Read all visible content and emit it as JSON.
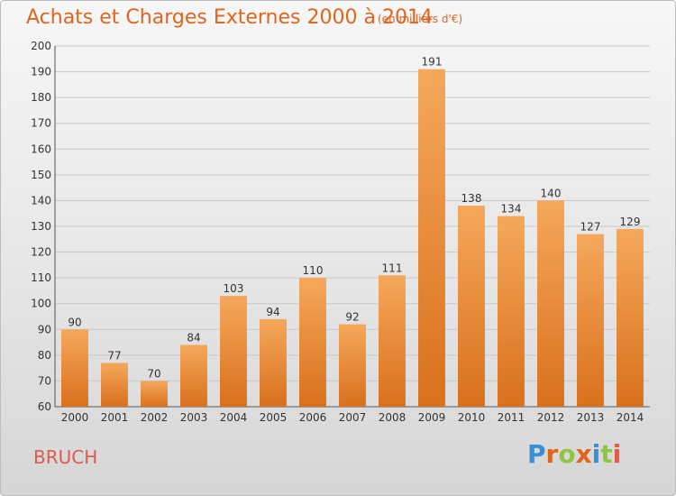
{
  "header": {
    "title": "Achats et Charges Externes 2000 à 2014",
    "subtitle": "(en milliers d'€)"
  },
  "footer": {
    "commune": "BRUCH",
    "logo_text": "Proxiti"
  },
  "colors": {
    "title": "#e0641f",
    "bar_top": "#f5a85a",
    "bar_bottom": "#d9701c",
    "commune": "#e05a4d",
    "logo_letters": [
      "#3a8fd6",
      "#e0641f",
      "#8dc63f",
      "#e0641f",
      "#3a8fd6",
      "#8dc63f",
      "#e05a4d"
    ]
  },
  "chart_data": {
    "type": "bar",
    "title": "Achats et Charges Externes 2000 à 2014",
    "subtitle": "(en milliers d'€)",
    "categories": [
      "2000",
      "2001",
      "2002",
      "2003",
      "2004",
      "2005",
      "2006",
      "2007",
      "2008",
      "2009",
      "2010",
      "2011",
      "2012",
      "2013",
      "2014"
    ],
    "values": [
      90,
      77,
      70,
      84,
      103,
      94,
      110,
      92,
      111,
      191,
      138,
      134,
      140,
      127,
      129
    ],
    "value_labels": [
      "90",
      "77",
      "70",
      "84",
      "103",
      "94",
      "110",
      "92",
      "111",
      "191",
      "138",
      "134",
      "140",
      "127",
      "129"
    ],
    "ylim": [
      60,
      200
    ],
    "yticks": [
      60,
      70,
      80,
      90,
      100,
      110,
      120,
      130,
      140,
      150,
      160,
      170,
      180,
      190,
      200
    ],
    "ytick_labels": [
      "60",
      "70",
      "80",
      "90",
      "100",
      "110",
      "120",
      "130",
      "140",
      "150",
      "160",
      "170",
      "180",
      "190",
      "200"
    ],
    "grid": true,
    "legend": "none"
  }
}
